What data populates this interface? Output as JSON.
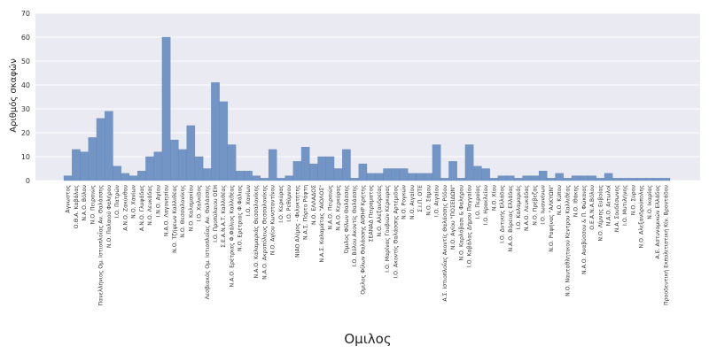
{
  "chart_data": {
    "type": "bar",
    "xlabel": "Ομιλος",
    "ylabel": "Αριθμός σκαφών",
    "ylim": [
      0,
      70
    ],
    "yticks": [
      0,
      10,
      20,
      30,
      40,
      50,
      60,
      70
    ],
    "grid": true,
    "bar_color": "#7295c6",
    "plot_background": "#eaeaf2",
    "categories": [
      "Άγνωστος",
      "Ο.Θ.Α. Καβάλας",
      "Ν.Α.Ο. Βόλου",
      "Ν.Ο. Πειραιώς",
      "Πανελλήνιος Ομ. Ιστιοπλοΐας Αν. Θαλάσσης",
      "Ν.Ο. Παλαιού Φαλήρου",
      "Ι.Ο. Πατρών",
      "Α.Ν.Ο. Ζακύνθου",
      "Ν.Ο. Χανίων",
      "Α.Ν.Ο. Γλυφάδας",
      "Ν.Ο. Λευκάδας",
      "Ι.Ν.Ο. Αγίου",
      "Ν.Α.Ο. Λαγονησίου",
      "Ν.Ο. Τζήψεων Καλλιθέας",
      "Ν.Ο. Θεσσαλονίκης",
      "Ν.Ο. Καλαμακίου",
      "Ι.Ο. Χαλκίδος",
      "Λεσβιακός Ομ. Ιστιοπλοΐας Αν. Θαλάσσης",
      "Ι.Ο. Προπύλαιου ΟΕΗ",
      "Σ.Ε.Α.Ν.Α.Τ. Καλλιθέας",
      "Ν.Α.Ο. Ερέτριας Φ.Φάλιος Καλλιθέας",
      "Ν.Ο. Ερέτριας Φ.Φάλιος",
      "Ι.Ο. Χανίων",
      "Ν.Α.Ο. Καλαμαριάς Θεσσαλονίκης",
      "Ν.Α.Ο. Ακροπόλεως Θεσσαλονίκης",
      "Ν.Ο. Αγίου Κωνσταντίνου",
      "Ι.Ο. Κερκύρας",
      "Ι.Ο. Ρεθύμνου",
      "ΝΙΑΟ Αλίμος - Φιλοκτήτης",
      "Ν.Α.Σ. Πόρτο Ράφτη",
      "Ν.Ο. ΕΛΛΑΔΟΣ",
      "Ν.Α.Σ. Καλαμάτας \"ΑΙΟΛΟΣ\"",
      "Ν.Α.Ο. Πειραιώς",
      "Ν.Α.Ο. Κερκύρας",
      "Όμιλος Φίλων Θαλάσσης",
      "Ι.Ο. Βόλου Ακοντίς Θαλάσσης",
      "Ομιλος Φίλων Θαλάσσης ΑΙΘΗΡ Κρήτης",
      "ΣΕΑΝΑΔ Πειραματος",
      "Ν.Ο. Αλεξανδρείας",
      "Ι.Ο. Μαρίνας Γουβιών Κέρκυρας",
      "Ι.Ο. Ακοντίς Θαλάσσης Αρτέμιδος",
      "Ν.Ο. Ρογκών",
      "Ν.Ο. Αιγαίου",
      "Σ.Ι.Π. ΟΤΕ",
      "Ν.Ο. Σάμου",
      "Ι.Ο. Αιγαίου",
      "Α.Σ. Ιστιοπλοΐας Ακοντίς Θαλάσσης Ρόδου",
      "Ν.Ο. Αγίου \"ΠΟΣΕΙΔΩΝ\"",
      "Ν.Ο. Καρλόβασι & Φαλήρου",
      "Ι.Ο. Καβάλας Δήμου Παγγαίου",
      "Ι.Ο. Περαίας",
      "Ι.Ο. Ηρακλείου",
      "Ν.Ο. Χίου",
      "Ι.Ο. Δυτικής Ελλάδος",
      "Ν.Α.Ο. Βόρειας Ελλάδας",
      "Ι.Ο. Καλαμαριάς",
      "Ν.Α.Ο. Λευκάδας",
      "Ν.Ο. Πρέβεζας",
      "Ι.Ο. Ιωαννίνων",
      "Ν.Ο. Ραφήνας \"ΑΛΚΥΩΝ\"",
      "Ν.Ο. Κύπου",
      "Ν.Ο. Ναυταθλητικού Κέντρου Καλλιθέας",
      "Ν.Ο. Ιθάκης",
      "Ν.Α.Ο. Αναβύσσου & Π. Φώκαιας",
      "Ο.Ε.Α.Ν.Α.Βόλου",
      "Ν.Ο. Λίμνης Ευβοίας",
      "Ν.Α.Ο. Αιτωλοί",
      "Ν.Α. Σουδέσωνης",
      "Ι.Ο. Μυτιλήνης",
      "Ν.Ο. Σύρου",
      "Ν.Ο. Αλεξανδρούπολης",
      "Ν.Ο. Ικαρίας",
      "Α.Ε. Αστυνομικών Ελλάδος",
      "Προοδευτική Εκπολιτιστική Κίν. Βροντάδου"
    ],
    "values": [
      2,
      13,
      12,
      18,
      26,
      29,
      6,
      3,
      2,
      4,
      10,
      12,
      60,
      17,
      13,
      23,
      10,
      5,
      41,
      33,
      15,
      4,
      4,
      2,
      1,
      13,
      1,
      2,
      8,
      14,
      7,
      10,
      10,
      5,
      13,
      1,
      7,
      3,
      3,
      5,
      5,
      5,
      3,
      3,
      3,
      15,
      1,
      8,
      1,
      15,
      6,
      5,
      1,
      2,
      2,
      1,
      2,
      2,
      4,
      1,
      3,
      1,
      2,
      2,
      2,
      1,
      3,
      1,
      1,
      1,
      1,
      1,
      1,
      1
    ]
  }
}
